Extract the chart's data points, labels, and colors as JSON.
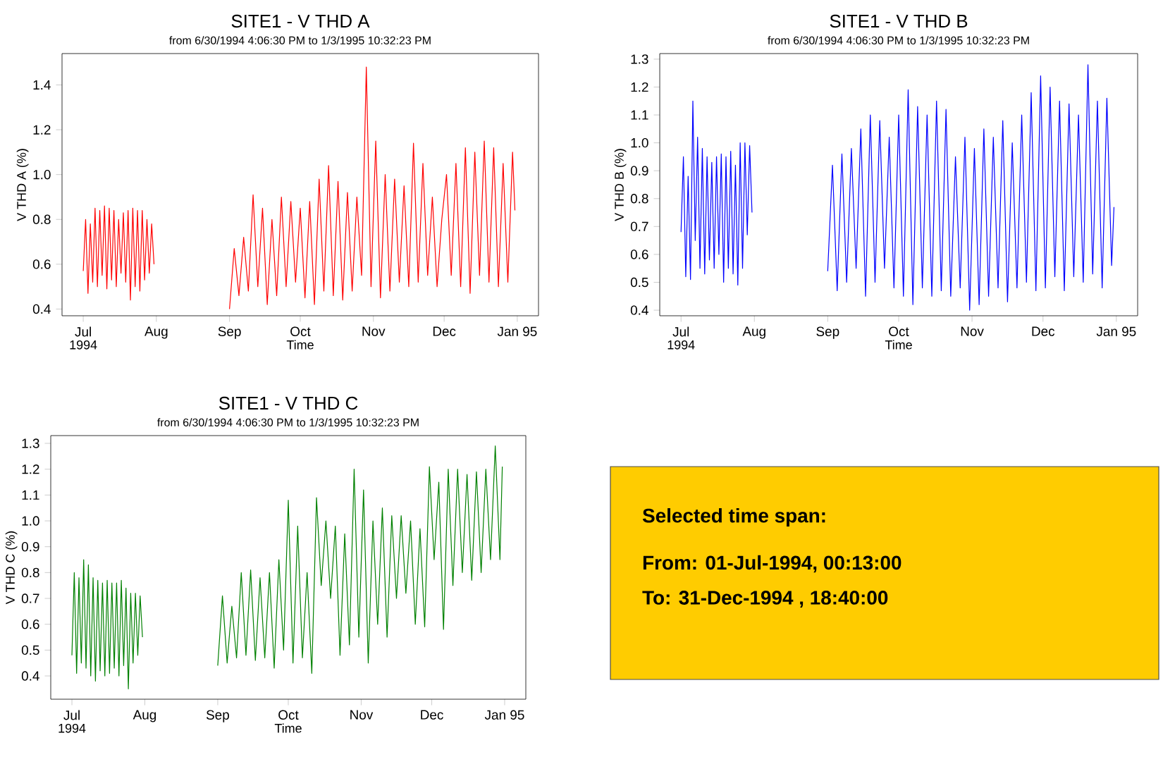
{
  "chart_data": [
    {
      "type": "line",
      "title": "SITE1 - V THD A",
      "subtitle": "from 6/30/1994 4:06:30 PM to 1/3/1995 10:32:23 PM",
      "xlabel": "Time",
      "ylabel": "V THD A (%)",
      "color": "#ff0000",
      "x": [
        "1994-07-01",
        "1994-07-02",
        "1994-07-03",
        "1994-07-04",
        "1994-07-05",
        "1994-07-06",
        "1994-07-07",
        "1994-07-08",
        "1994-07-09",
        "1994-07-10",
        "1994-07-11",
        "1994-07-12",
        "1994-07-13",
        "1994-07-14",
        "1994-07-15",
        "1994-07-16",
        "1994-07-17",
        "1994-07-18",
        "1994-07-19",
        "1994-07-20",
        "1994-07-21",
        "1994-07-22",
        "1994-07-23",
        "1994-07-24",
        "1994-07-25",
        "1994-07-26",
        "1994-07-27",
        "1994-07-28",
        "1994-07-29",
        "1994-07-30",
        "1994-07-31",
        "1994-08-02",
        "1994-09-01",
        "1994-09-03",
        "1994-09-05",
        "1994-09-07",
        "1994-09-09",
        "1994-09-11",
        "1994-09-13",
        "1994-09-15",
        "1994-09-17",
        "1994-09-19",
        "1994-09-21",
        "1994-09-23",
        "1994-09-25",
        "1994-09-27",
        "1994-09-29",
        "1994-10-01",
        "1994-10-03",
        "1994-10-05",
        "1994-10-07",
        "1994-10-09",
        "1994-10-11",
        "1994-10-13",
        "1994-10-15",
        "1994-10-17",
        "1994-10-19",
        "1994-10-21",
        "1994-10-23",
        "1994-10-25",
        "1994-10-27",
        "1994-10-29",
        "1994-10-31",
        "1994-11-02",
        "1994-11-04",
        "1994-11-06",
        "1994-11-08",
        "1994-11-10",
        "1994-11-12",
        "1994-11-14",
        "1994-11-16",
        "1994-11-18",
        "1994-11-20",
        "1994-11-22",
        "1994-11-24",
        "1994-11-26",
        "1994-11-28",
        "1994-11-30",
        "1994-12-02",
        "1994-12-04",
        "1994-12-06",
        "1994-12-08",
        "1994-12-10",
        "1994-12-12",
        "1994-12-14",
        "1994-12-16",
        "1994-12-18",
        "1994-12-20",
        "1994-12-22",
        "1994-12-24",
        "1994-12-26",
        "1994-12-28",
        "1994-12-30",
        "1994-12-31"
      ],
      "values": [
        0.57,
        0.8,
        0.47,
        0.78,
        0.52,
        0.85,
        0.5,
        0.84,
        0.55,
        0.86,
        0.49,
        0.85,
        0.53,
        0.84,
        0.5,
        0.8,
        0.56,
        0.83,
        0.52,
        0.84,
        0.44,
        0.85,
        0.5,
        0.84,
        0.48,
        0.84,
        0.53,
        0.8,
        0.56,
        0.78,
        0.6,
        null,
        0.4,
        0.67,
        0.46,
        0.72,
        0.48,
        0.91,
        0.5,
        0.85,
        0.42,
        0.8,
        0.46,
        0.9,
        0.5,
        0.88,
        0.52,
        0.85,
        0.45,
        0.88,
        0.42,
        0.98,
        0.48,
        1.04,
        0.46,
        0.97,
        0.44,
        0.92,
        0.48,
        0.9,
        0.55,
        1.48,
        0.5,
        1.15,
        0.45,
        1.0,
        0.48,
        0.98,
        0.52,
        0.95,
        0.5,
        1.14,
        0.52,
        1.05,
        0.55,
        0.9,
        0.5,
        0.8,
        1.0,
        0.55,
        1.05,
        0.5,
        1.12,
        0.47,
        1.1,
        0.55,
        1.15,
        0.52,
        1.12,
        0.5,
        1.05,
        0.52,
        1.1,
        0.84
      ],
      "xlim": [
        "1994-06-22",
        "1995-01-10"
      ],
      "ylim": [
        0.37,
        1.54
      ],
      "xticks": [
        {
          "value": "1994-07-01",
          "label": "Jul"
        },
        {
          "value": "1994-08-01",
          "label": "Aug"
        },
        {
          "value": "1994-09-01",
          "label": "Sep"
        },
        {
          "value": "1994-10-01",
          "label": "Oct"
        },
        {
          "value": "1994-11-01",
          "label": "Nov"
        },
        {
          "value": "1994-12-01",
          "label": "Dec"
        },
        {
          "value": "1995-01-01",
          "label": "Jan 95"
        }
      ],
      "yticks": [
        {
          "value": 0.4,
          "label": "0.4"
        },
        {
          "value": 0.6,
          "label": "0.6"
        },
        {
          "value": 0.8,
          "label": "0.8"
        },
        {
          "value": 1.0,
          "label": "1.0"
        },
        {
          "value": 1.2,
          "label": "1.2"
        },
        {
          "value": 1.4,
          "label": "1.4"
        }
      ],
      "annotations": [
        "1994"
      ]
    },
    {
      "type": "line",
      "title": "SITE1 - V THD B",
      "subtitle": "from 6/30/1994 4:06:30 PM to 1/3/1995 10:32:23 PM",
      "xlabel": "Time",
      "ylabel": "V THD B (%)",
      "color": "#0000ff",
      "x": [
        "1994-07-01",
        "1994-07-02",
        "1994-07-03",
        "1994-07-04",
        "1994-07-05",
        "1994-07-06",
        "1994-07-07",
        "1994-07-08",
        "1994-07-09",
        "1994-07-10",
        "1994-07-11",
        "1994-07-12",
        "1994-07-13",
        "1994-07-14",
        "1994-07-15",
        "1994-07-16",
        "1994-07-17",
        "1994-07-18",
        "1994-07-19",
        "1994-07-20",
        "1994-07-21",
        "1994-07-22",
        "1994-07-23",
        "1994-07-24",
        "1994-07-25",
        "1994-07-26",
        "1994-07-27",
        "1994-07-28",
        "1994-07-29",
        "1994-07-30",
        "1994-07-31",
        "1994-08-02",
        "1994-09-01",
        "1994-09-03",
        "1994-09-05",
        "1994-09-07",
        "1994-09-09",
        "1994-09-11",
        "1994-09-13",
        "1994-09-15",
        "1994-09-17",
        "1994-09-19",
        "1994-09-21",
        "1994-09-23",
        "1994-09-25",
        "1994-09-27",
        "1994-09-29",
        "1994-10-01",
        "1994-10-03",
        "1994-10-05",
        "1994-10-07",
        "1994-10-09",
        "1994-10-11",
        "1994-10-13",
        "1994-10-15",
        "1994-10-17",
        "1994-10-19",
        "1994-10-21",
        "1994-10-23",
        "1994-10-25",
        "1994-10-27",
        "1994-10-29",
        "1994-10-31",
        "1994-11-02",
        "1994-11-04",
        "1994-11-06",
        "1994-11-08",
        "1994-11-10",
        "1994-11-12",
        "1994-11-14",
        "1994-11-16",
        "1994-11-18",
        "1994-11-20",
        "1994-11-22",
        "1994-11-24",
        "1994-11-26",
        "1994-11-28",
        "1994-11-30",
        "1994-12-02",
        "1994-12-04",
        "1994-12-06",
        "1994-12-08",
        "1994-12-10",
        "1994-12-12",
        "1994-12-14",
        "1994-12-16",
        "1994-12-18",
        "1994-12-20",
        "1994-12-22",
        "1994-12-24",
        "1994-12-26",
        "1994-12-28",
        "1994-12-30",
        "1994-12-31"
      ],
      "values": [
        0.68,
        0.95,
        0.52,
        0.88,
        0.51,
        1.15,
        0.65,
        1.02,
        0.55,
        0.98,
        0.53,
        0.95,
        0.58,
        0.93,
        0.55,
        0.95,
        0.6,
        0.96,
        0.5,
        0.95,
        0.55,
        0.97,
        0.53,
        0.92,
        0.49,
        1.0,
        0.55,
        1.0,
        0.67,
        0.99,
        0.75,
        null,
        0.54,
        0.92,
        0.47,
        0.96,
        0.5,
        0.98,
        0.55,
        1.05,
        0.45,
        1.1,
        0.5,
        1.08,
        0.55,
        1.02,
        0.48,
        1.1,
        0.45,
        1.19,
        0.42,
        1.13,
        0.48,
        1.1,
        0.45,
        1.15,
        0.47,
        1.12,
        0.45,
        0.95,
        0.48,
        1.02,
        0.4,
        0.98,
        0.42,
        1.05,
        0.45,
        1.02,
        0.48,
        1.08,
        0.43,
        1.0,
        0.48,
        1.1,
        0.5,
        1.18,
        0.47,
        1.24,
        0.48,
        1.2,
        0.52,
        1.15,
        0.47,
        1.14,
        0.52,
        1.1,
        0.5,
        1.28,
        0.53,
        1.15,
        0.48,
        1.16,
        0.56,
        0.77
      ],
      "xlim": [
        "1994-06-22",
        "1995-01-10"
      ],
      "ylim": [
        0.38,
        1.32
      ],
      "xticks": [
        {
          "value": "1994-07-01",
          "label": "Jul"
        },
        {
          "value": "1994-08-01",
          "label": "Aug"
        },
        {
          "value": "1994-09-01",
          "label": "Sep"
        },
        {
          "value": "1994-10-01",
          "label": "Oct"
        },
        {
          "value": "1994-11-01",
          "label": "Nov"
        },
        {
          "value": "1994-12-01",
          "label": "Dec"
        },
        {
          "value": "1995-01-01",
          "label": "Jan 95"
        }
      ],
      "yticks": [
        {
          "value": 0.4,
          "label": "0.4"
        },
        {
          "value": 0.5,
          "label": "0.5"
        },
        {
          "value": 0.6,
          "label": "0.6"
        },
        {
          "value": 0.7,
          "label": "0.7"
        },
        {
          "value": 0.8,
          "label": "0.8"
        },
        {
          "value": 0.9,
          "label": "0.9"
        },
        {
          "value": 1.0,
          "label": "1.0"
        },
        {
          "value": 1.1,
          "label": "1.1"
        },
        {
          "value": 1.2,
          "label": "1.2"
        },
        {
          "value": 1.3,
          "label": "1.3"
        }
      ],
      "annotations": [
        "1994"
      ]
    },
    {
      "type": "line",
      "title": "SITE1 - V THD C",
      "subtitle": "from 6/30/1994 4:06:30 PM to 1/3/1995 10:32:23 PM",
      "xlabel": "Time",
      "ylabel": "V THD C (%)",
      "color": "#008000",
      "x": [
        "1994-07-01",
        "1994-07-02",
        "1994-07-03",
        "1994-07-04",
        "1994-07-05",
        "1994-07-06",
        "1994-07-07",
        "1994-07-08",
        "1994-07-09",
        "1994-07-10",
        "1994-07-11",
        "1994-07-12",
        "1994-07-13",
        "1994-07-14",
        "1994-07-15",
        "1994-07-16",
        "1994-07-17",
        "1994-07-18",
        "1994-07-19",
        "1994-07-20",
        "1994-07-21",
        "1994-07-22",
        "1994-07-23",
        "1994-07-24",
        "1994-07-25",
        "1994-07-26",
        "1994-07-27",
        "1994-07-28",
        "1994-07-29",
        "1994-07-30",
        "1994-07-31",
        "1994-08-02",
        "1994-09-01",
        "1994-09-03",
        "1994-09-05",
        "1994-09-07",
        "1994-09-09",
        "1994-09-11",
        "1994-09-13",
        "1994-09-15",
        "1994-09-17",
        "1994-09-19",
        "1994-09-21",
        "1994-09-23",
        "1994-09-25",
        "1994-09-27",
        "1994-09-29",
        "1994-10-01",
        "1994-10-03",
        "1994-10-05",
        "1994-10-07",
        "1994-10-09",
        "1994-10-11",
        "1994-10-13",
        "1994-10-15",
        "1994-10-17",
        "1994-10-19",
        "1994-10-21",
        "1994-10-23",
        "1994-10-25",
        "1994-10-27",
        "1994-10-29",
        "1994-10-31",
        "1994-11-02",
        "1994-11-04",
        "1994-11-06",
        "1994-11-08",
        "1994-11-10",
        "1994-11-12",
        "1994-11-14",
        "1994-11-16",
        "1994-11-18",
        "1994-11-20",
        "1994-11-22",
        "1994-11-24",
        "1994-11-26",
        "1994-11-28",
        "1994-11-30",
        "1994-12-02",
        "1994-12-04",
        "1994-12-06",
        "1994-12-08",
        "1994-12-10",
        "1994-12-12",
        "1994-12-14",
        "1994-12-16",
        "1994-12-18",
        "1994-12-20",
        "1994-12-22",
        "1994-12-24",
        "1994-12-26",
        "1994-12-28",
        "1994-12-30",
        "1994-12-31"
      ],
      "values": [
        0.48,
        0.8,
        0.41,
        0.78,
        0.45,
        0.85,
        0.43,
        0.83,
        0.4,
        0.78,
        0.38,
        0.77,
        0.42,
        0.76,
        0.4,
        0.77,
        0.41,
        0.76,
        0.43,
        0.76,
        0.4,
        0.77,
        0.44,
        0.74,
        0.35,
        0.72,
        0.45,
        0.72,
        0.48,
        0.71,
        0.55,
        null,
        0.44,
        0.71,
        0.45,
        0.67,
        0.47,
        0.8,
        0.48,
        0.81,
        0.46,
        0.78,
        0.47,
        0.8,
        0.43,
        0.85,
        0.5,
        1.08,
        0.45,
        0.98,
        0.47,
        0.8,
        0.41,
        1.09,
        0.75,
        1.0,
        0.7,
        0.98,
        0.48,
        0.95,
        0.52,
        1.2,
        0.55,
        1.12,
        0.45,
        1.0,
        0.6,
        1.05,
        0.55,
        1.02,
        0.7,
        1.02,
        0.72,
        1.0,
        0.6,
        0.97,
        0.59,
        1.21,
        0.85,
        1.15,
        0.58,
        1.2,
        0.75,
        1.2,
        0.8,
        1.18,
        0.77,
        1.19,
        0.8,
        1.2,
        0.85,
        1.29,
        0.85,
        1.21
      ],
      "xlim": [
        "1994-06-22",
        "1995-01-10"
      ],
      "ylim": [
        0.31,
        1.33
      ],
      "xticks": [
        {
          "value": "1994-07-01",
          "label": "Jul"
        },
        {
          "value": "1994-08-01",
          "label": "Aug"
        },
        {
          "value": "1994-09-01",
          "label": "Sep"
        },
        {
          "value": "1994-10-01",
          "label": "Oct"
        },
        {
          "value": "1994-11-01",
          "label": "Nov"
        },
        {
          "value": "1994-12-01",
          "label": "Dec"
        },
        {
          "value": "1995-01-01",
          "label": "Jan 95"
        }
      ],
      "yticks": [
        {
          "value": 0.4,
          "label": "0.4"
        },
        {
          "value": 0.5,
          "label": "0.5"
        },
        {
          "value": 0.6,
          "label": "0.6"
        },
        {
          "value": 0.7,
          "label": "0.7"
        },
        {
          "value": 0.8,
          "label": "0.8"
        },
        {
          "value": 0.9,
          "label": "0.9"
        },
        {
          "value": 1.0,
          "label": "1.0"
        },
        {
          "value": 1.1,
          "label": "1.1"
        },
        {
          "value": 1.2,
          "label": "1.2"
        },
        {
          "value": 1.3,
          "label": "1.3"
        }
      ],
      "annotations": [
        "1994"
      ]
    },
    {
      "type": "other",
      "title": "Selected time span:",
      "color": "#ffcc00",
      "annotations": [
        "From: 01-Jul-1994, 00:13:00",
        "To: 31-Dec-1994 , 18:40:00"
      ]
    }
  ]
}
